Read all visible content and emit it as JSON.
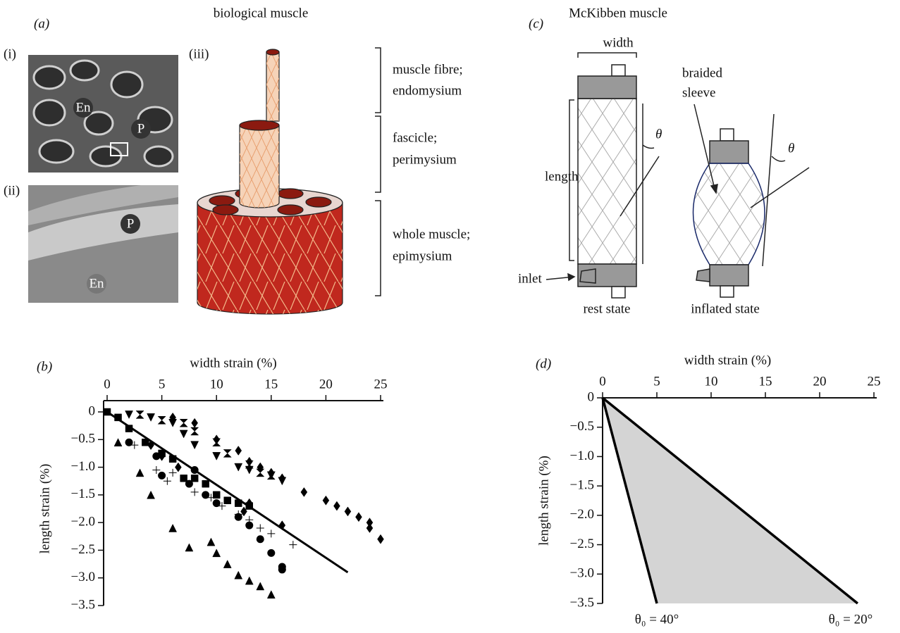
{
  "panel_a": {
    "label": "(a)",
    "title": "biological muscle",
    "parts": [
      "(i)",
      "(ii)",
      "(iii)"
    ],
    "image_i": [
      "En",
      "P"
    ],
    "image_ii": [
      "P",
      "En"
    ],
    "levels": [
      [
        "muscle fibre;",
        "endomysium"
      ],
      [
        "fascicle;",
        "perimysium"
      ],
      [
        "whole muscle;",
        "epimysium"
      ]
    ]
  },
  "panel_c": {
    "label": "(c)",
    "title": "McKibben muscle",
    "width": "width",
    "length": "length",
    "theta": [
      "θ",
      "θ"
    ],
    "sleeve": [
      "braided",
      "sleeve"
    ],
    "inlet": "inlet",
    "states": [
      "rest state",
      "inflated state"
    ]
  },
  "chart_data": [
    {
      "type": "scatter",
      "label": "(b)",
      "xlabel": "width strain (%)",
      "ylabel": "length strain (%)",
      "xlim": [
        0,
        25
      ],
      "ylim": [
        -3.5,
        0
      ],
      "xticks": [
        0,
        5,
        10,
        15,
        20,
        25
      ],
      "yticks": [
        0,
        {
          "value": -0.5,
          "label": "−0.5"
        },
        {
          "value": -1,
          "label": "−1.0"
        },
        {
          "value": -1.5,
          "label": "−1.5"
        },
        {
          "value": -2,
          "label": "−2.0"
        },
        {
          "value": -2.5,
          "label": "−2.5"
        },
        {
          "value": -3,
          "label": "−3.0"
        },
        {
          "value": -3.5,
          "label": "−3.5"
        }
      ],
      "color": "#000000",
      "series": [
        {
          "marker": "triangle-down",
          "x": [
            2,
            4,
            6,
            7,
            8,
            10,
            12,
            13,
            15,
            16
          ],
          "values": [
            -0.05,
            -0.1,
            -0.2,
            -0.4,
            -0.6,
            -0.8,
            -1.0,
            -1.05,
            -1.15,
            -1.25
          ]
        },
        {
          "marker": "hourglass",
          "x": [
            3,
            5,
            7,
            8,
            10,
            11,
            13,
            14,
            15
          ],
          "values": [
            -0.05,
            -0.15,
            -0.2,
            -0.35,
            -0.55,
            -0.75,
            -0.95,
            -1.1,
            -1.15
          ]
        },
        {
          "marker": "diamond",
          "x": [
            6,
            8,
            10,
            12,
            13,
            14,
            15,
            16,
            18,
            20,
            21,
            22,
            23,
            24,
            24,
            25
          ],
          "values": [
            -0.1,
            -0.2,
            -0.5,
            -0.7,
            -0.9,
            -1.0,
            -1.1,
            -1.2,
            -1.45,
            -1.6,
            -1.7,
            -1.8,
            -1.9,
            -2.0,
            -2.1,
            -2.3
          ]
        },
        {
          "marker": "diamond",
          "x": [
            4,
            5,
            6.5,
            12.5,
            13,
            16
          ],
          "values": [
            -0.6,
            -0.8,
            -1.0,
            -1.8,
            -1.65,
            -2.05
          ]
        },
        {
          "marker": "square",
          "x": [
            0,
            1,
            2,
            3.5,
            5,
            6,
            7,
            8,
            9,
            10,
            11,
            12,
            13
          ],
          "values": [
            0,
            -0.1,
            -0.3,
            -0.55,
            -0.75,
            -0.85,
            -1.2,
            -1.2,
            -1.3,
            -1.5,
            -1.6,
            -1.65,
            -1.7
          ]
        },
        {
          "marker": "circle",
          "x": [
            2,
            4.5,
            5,
            7.5,
            8,
            9,
            10,
            12,
            13,
            14,
            15,
            16,
            16
          ],
          "values": [
            -0.55,
            -0.8,
            -1.15,
            -1.3,
            -1.05,
            -1.5,
            -1.65,
            -1.9,
            -2.05,
            -2.3,
            -2.55,
            -2.8,
            -2.85
          ]
        },
        {
          "marker": "triangle",
          "x": [
            1,
            3,
            4,
            6,
            7.5,
            9.5,
            10,
            11,
            12,
            13,
            14,
            15
          ],
          "values": [
            -0.55,
            -1.1,
            -1.5,
            -2.1,
            -2.45,
            -2.35,
            -2.55,
            -2.75,
            -2.95,
            -3.05,
            -3.15,
            -3.3
          ]
        },
        {
          "marker": "plus",
          "x": [
            2.5,
            4.5,
            5.5,
            6,
            8,
            9.5,
            10.5,
            12,
            13,
            14,
            15,
            17
          ],
          "values": [
            -0.6,
            -1.05,
            -1.25,
            -1.1,
            -1.45,
            -1.55,
            -1.7,
            -1.85,
            -1.95,
            -2.1,
            -2.2,
            -2.4
          ]
        },
        {
          "marker": "line",
          "x": [
            0,
            22
          ],
          "values": [
            0,
            -2.9
          ]
        }
      ]
    },
    {
      "type": "area",
      "label": "(d)",
      "xlabel": "width strain (%)",
      "ylabel": "length strain (%)",
      "xlim": [
        0,
        25
      ],
      "ylim": [
        -3.5,
        0
      ],
      "xticks": [
        0,
        5,
        10,
        15,
        20,
        25
      ],
      "yticks": [
        0,
        {
          "value": -0.5,
          "label": "−0.5"
        },
        {
          "value": -1,
          "label": "−1.0"
        },
        {
          "value": -1.5,
          "label": "−1.5"
        },
        {
          "value": -2,
          "label": "−2.0"
        },
        {
          "value": -2.5,
          "label": "−2.5"
        },
        {
          "value": -3,
          "label": "−3.0"
        },
        {
          "value": -3.5,
          "label": "−3.5"
        }
      ],
      "color": "#000000",
      "fill": "#d4d4d4",
      "series": [
        {
          "label": "θ₀ = 40°",
          "x": [
            0,
            5
          ],
          "values": [
            0,
            -3.5
          ]
        },
        {
          "label": "θ₀ = 20°",
          "x": [
            0,
            23.5
          ],
          "values": [
            0,
            -3.5
          ]
        }
      ]
    }
  ]
}
